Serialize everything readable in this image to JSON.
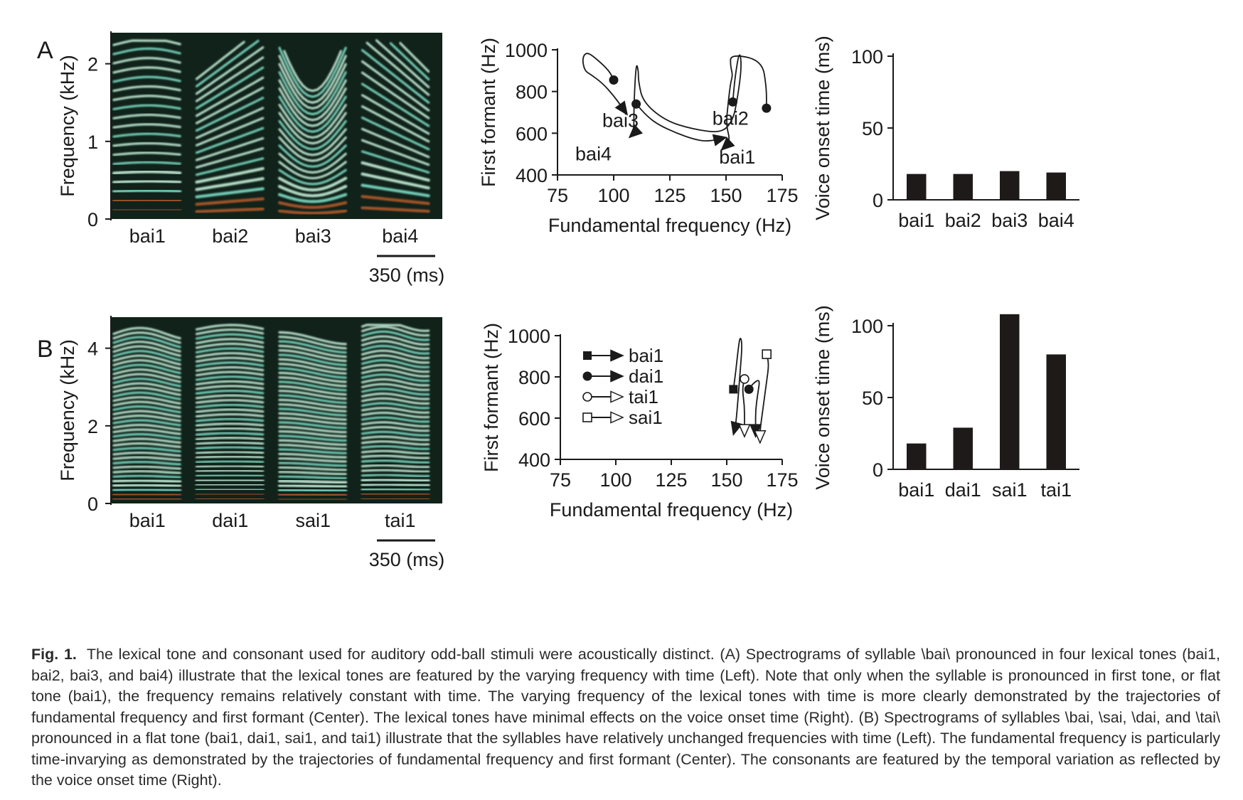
{
  "panels": [
    {
      "letter": "A",
      "spectrogram": {
        "ylabel": "Frequency (kHz)",
        "yticks": [
          "0",
          "1",
          "2"
        ],
        "yvalues": [
          0,
          1,
          2
        ],
        "ymax": 2.4,
        "syllables": [
          "bai1",
          "bai2",
          "bai3",
          "bai4"
        ],
        "scale_label": "350 (ms)"
      },
      "trajectory": {
        "xlabel": "Fundamental frequency (Hz)",
        "ylabel": "First formant (Hz)",
        "xticks": [
          75,
          100,
          125,
          150,
          175
        ],
        "yticks": [
          400,
          600,
          800,
          1000
        ],
        "xlim": [
          75,
          175
        ],
        "ylim": [
          400,
          1000
        ],
        "legend": [],
        "series": [
          {
            "name": "bai1",
            "marker": "filled-circle",
            "points": [
              [
                168,
                720
              ],
              [
                168,
                820
              ],
              [
                166,
                950
              ],
              [
                152,
                980
              ],
              [
                152,
                920
              ],
              [
                153,
                880
              ],
              [
                152,
                840
              ],
              [
                151,
                750
              ],
              [
                150,
                640
              ],
              [
                152,
                560
              ],
              [
                148,
                520
              ]
            ],
            "label": "bai1",
            "label_at": [
              155,
              455
            ]
          },
          {
            "name": "bai2",
            "marker": "filled-circle",
            "points": [
              [
                153,
                750
              ],
              [
                154,
                870
              ],
              [
                156,
                1000
              ],
              [
                157,
                920
              ],
              [
                155,
                760
              ],
              [
                153,
                660
              ],
              [
                148,
                600
              ],
              [
                135,
                620
              ],
              [
                123,
                660
              ],
              [
                113,
                750
              ],
              [
                111,
                850
              ],
              [
                111,
                900
              ],
              [
                110,
                940
              ],
              [
                109,
                740
              ],
              [
                109,
                600
              ],
              [
                107,
                580
              ]
            ],
            "label": "bai2",
            "label_at": [
              152,
              640
            ]
          },
          {
            "name": "bai3",
            "marker": "filled-circle",
            "points": [
              [
                110,
                740
              ],
              [
                115,
                680
              ],
              [
                120,
                640
              ],
              [
                128,
                600
              ],
              [
                136,
                570
              ],
              [
                142,
                560
              ],
              [
                150,
                580
              ]
            ],
            "label": "bai3",
            "label_at": [
              103,
              630
            ]
          },
          {
            "name": "bai4",
            "marker": "filled-circle",
            "points": [
              [
                100,
                855
              ],
              [
                98,
                900
              ],
              [
                92,
                960
              ],
              [
                88,
                990
              ],
              [
                86,
                960
              ],
              [
                87,
                900
              ],
              [
                90,
                880
              ],
              [
                95,
                840
              ],
              [
                100,
                780
              ],
              [
                104,
                720
              ],
              [
                106,
                690
              ]
            ],
            "label": "bai4",
            "label_at": [
              91,
              470
            ]
          }
        ],
        "arrow_tail_tips": []
      },
      "voice_onset": {
        "ylabel": "Voice onset time (ms)",
        "yticks": [
          0,
          50,
          100
        ],
        "ylim": [
          0,
          100
        ],
        "categories": [
          "bai1",
          "bai2",
          "bai3",
          "bai4"
        ],
        "values": [
          18,
          18,
          20,
          19
        ]
      }
    },
    {
      "letter": "B",
      "spectrogram": {
        "ylabel": "Frequency (kHz)",
        "yticks": [
          "0",
          "2",
          "4"
        ],
        "yvalues": [
          0,
          2,
          4
        ],
        "ymax": 4.8,
        "syllables": [
          "bai1",
          "dai1",
          "sai1",
          "tai1"
        ],
        "scale_label": "350 (ms)"
      },
      "trajectory": {
        "xlabel": "Fundamental frequency (Hz)",
        "ylabel": "First formant (Hz)",
        "xticks": [
          75,
          100,
          125,
          150,
          175
        ],
        "yticks": [
          400,
          600,
          800,
          1000
        ],
        "xlim": [
          75,
          175
        ],
        "ylim": [
          400,
          1000
        ],
        "legend": [
          {
            "label": "bai1",
            "marker": "filled-square",
            "head": "filled"
          },
          {
            "label": "dai1",
            "marker": "filled-circle",
            "head": "filled"
          },
          {
            "label": "tai1",
            "marker": "open-circle",
            "head": "open"
          },
          {
            "label": "sai1",
            "marker": "open-square",
            "head": "open"
          }
        ],
        "series": [
          {
            "name": "bai1",
            "marker": "filled-square",
            "points": [
              [
                153,
                740
              ],
              [
                154,
                820
              ],
              [
                155,
                920
              ],
              [
                156,
                1000
              ],
              [
                157,
                960
              ],
              [
                156,
                820
              ],
              [
                155,
                680
              ],
              [
                154,
                560
              ],
              [
                153,
                520
              ]
            ]
          },
          {
            "name": "dai1",
            "marker": "filled-circle",
            "points": [
              [
                160,
                740
              ],
              [
                162,
                770
              ],
              [
                165,
                790
              ],
              [
                164,
                720
              ],
              [
                163,
                640
              ],
              [
                163,
                560
              ],
              [
                163,
                510
              ]
            ]
          },
          {
            "name": "tai1",
            "marker": "open-circle",
            "points": [
              [
                158,
                790
              ],
              [
                157,
                740
              ],
              [
                158,
                660
              ],
              [
                158,
                580
              ],
              [
                158,
                510
              ]
            ]
          },
          {
            "name": "sai1",
            "marker": "open-square",
            "points": [
              [
                168,
                910
              ],
              [
                169,
                860
              ],
              [
                168,
                780
              ],
              [
                167,
                700
              ],
              [
                166,
                620
              ],
              [
                165,
                540
              ],
              [
                165,
                480
              ]
            ]
          }
        ]
      },
      "voice_onset": {
        "ylabel": "Voice onset time (ms)",
        "yticks": [
          0,
          50,
          100
        ],
        "ylim": [
          0,
          100
        ],
        "categories": [
          "bai1",
          "dai1",
          "sai1",
          "tai1"
        ],
        "values": [
          18,
          29,
          108,
          80
        ]
      }
    }
  ],
  "caption": {
    "label": "Fig. 1.",
    "text": "The lexical tone and consonant used for auditory odd-ball stimuli were acoustically distinct. (A) Spectrograms of syllable \\bai\\ pronounced in four lexical tones (bai1, bai2, bai3, and bai4) illustrate that the lexical tones are featured by the varying frequency with time (Left). Note that only when the syllable is pronounced in first tone, or flat tone (bai1), the frequency remains relatively constant with time. The varying frequency of the lexical tones with time is more clearly demonstrated by the trajectories of fundamental frequency and first formant (Center). The lexical tones have minimal effects on the voice onset time (Right). (B) Spectrograms of syllables \\bai, \\sai, \\dai, and \\tai\\ pronounced in a flat tone (bai1, dai1, sai1, and tai1) illustrate that the syllables have relatively unchanged frequencies with time (Left). The fundamental frequency is particularly time-invarying as demonstrated by the trajectories of fundamental frequency and first formant (Center). The consonants are featured by the temporal variation as reflected by the voice onset time (Right)."
  },
  "colors": {
    "spectrogram_bg": "#10221a",
    "harmonic_core": "#c8f2dc",
    "harmonic_mid": "#7fe0c8",
    "harmonic_edge": "#b35a2a",
    "bar_fill": "#1f1a1a",
    "ink": "#1a1a1a"
  }
}
